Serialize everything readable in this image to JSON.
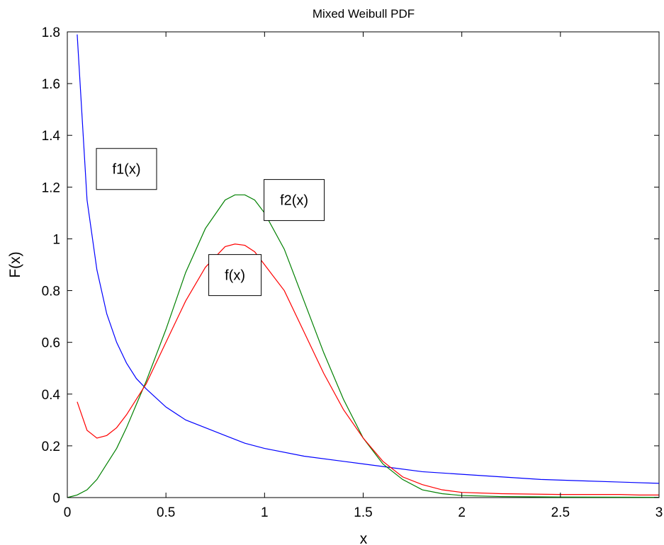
{
  "chart_data": {
    "type": "line",
    "title": "Mixed Weibull PDF",
    "xlabel": "x",
    "ylabel": "F(x)",
    "xlim": [
      0,
      3
    ],
    "ylim": [
      0,
      1.8
    ],
    "xticks": [
      0,
      0.5,
      1,
      1.5,
      2,
      2.5,
      3
    ],
    "xtick_labels": [
      "0",
      "0.5",
      "1",
      "1.5",
      "2",
      "2.5",
      "3"
    ],
    "yticks": [
      0,
      0.2,
      0.4,
      0.6,
      0.8,
      1,
      1.2,
      1.4,
      1.6,
      1.8
    ],
    "ytick_labels": [
      "0",
      "0.2",
      "0.4",
      "0.6",
      "0.8",
      "1",
      "1.2",
      "1.4",
      "1.6",
      "1.8"
    ],
    "grid": false,
    "legend": "none",
    "series": [
      {
        "color": "#0000ff",
        "x": [
          0.05,
          0.1,
          0.15,
          0.2,
          0.25,
          0.3,
          0.35,
          0.4,
          0.5,
          0.6,
          0.7,
          0.8,
          0.9,
          1.0,
          1.2,
          1.4,
          1.6,
          1.8,
          2.0,
          2.2,
          2.4,
          2.6,
          2.8,
          3.0
        ],
        "y": [
          1.79,
          1.15,
          0.88,
          0.71,
          0.6,
          0.52,
          0.46,
          0.42,
          0.35,
          0.3,
          0.27,
          0.24,
          0.21,
          0.19,
          0.16,
          0.14,
          0.12,
          0.1,
          0.09,
          0.08,
          0.07,
          0.065,
          0.06,
          0.055
        ]
      },
      {
        "color": "#008000",
        "x": [
          0.0,
          0.05,
          0.1,
          0.15,
          0.2,
          0.25,
          0.3,
          0.35,
          0.4,
          0.45,
          0.5,
          0.6,
          0.7,
          0.8,
          0.85,
          0.9,
          0.95,
          1.0,
          1.1,
          1.2,
          1.3,
          1.4,
          1.5,
          1.6,
          1.7,
          1.8,
          1.9,
          2.0,
          2.2,
          2.5,
          3.0
        ],
        "y": [
          0.0,
          0.01,
          0.03,
          0.07,
          0.13,
          0.19,
          0.27,
          0.36,
          0.45,
          0.55,
          0.65,
          0.87,
          1.04,
          1.15,
          1.17,
          1.17,
          1.15,
          1.1,
          0.96,
          0.76,
          0.56,
          0.38,
          0.23,
          0.13,
          0.07,
          0.03,
          0.015,
          0.008,
          0.004,
          0.002,
          0.001
        ]
      },
      {
        "color": "#ff0000",
        "x": [
          0.05,
          0.1,
          0.15,
          0.2,
          0.25,
          0.3,
          0.35,
          0.4,
          0.45,
          0.5,
          0.6,
          0.7,
          0.8,
          0.85,
          0.9,
          0.95,
          1.0,
          1.1,
          1.2,
          1.3,
          1.4,
          1.5,
          1.6,
          1.7,
          1.8,
          1.9,
          2.0,
          2.2,
          2.5,
          2.8,
          2.9,
          3.0
        ],
        "y": [
          0.37,
          0.26,
          0.23,
          0.24,
          0.27,
          0.32,
          0.38,
          0.44,
          0.52,
          0.6,
          0.76,
          0.89,
          0.97,
          0.98,
          0.975,
          0.95,
          0.9,
          0.8,
          0.64,
          0.48,
          0.34,
          0.23,
          0.14,
          0.08,
          0.05,
          0.03,
          0.02,
          0.015,
          0.012,
          0.012,
          0.01,
          0.01
        ]
      }
    ],
    "annotations": [
      {
        "text": "f1(x)",
        "x": 0.3,
        "y": 1.27
      },
      {
        "text": "f2(x)",
        "x": 1.15,
        "y": 1.15
      },
      {
        "text": "f(x)",
        "x": 0.85,
        "y": 0.86
      }
    ]
  }
}
